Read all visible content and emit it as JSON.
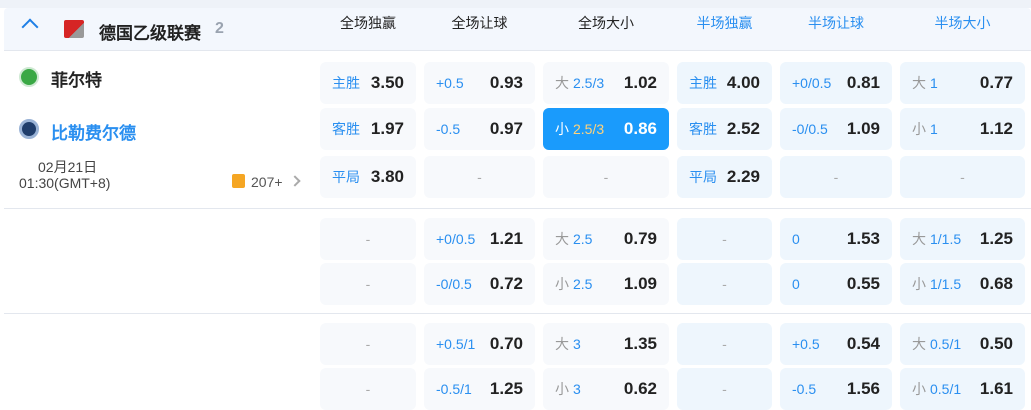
{
  "league": {
    "name": "德国乙级联赛",
    "count": "2"
  },
  "columns": [
    "全场独赢",
    "全场让球",
    "全场大小",
    "半场独赢",
    "半场让球",
    "半场大小"
  ],
  "match": {
    "home": "菲尔特",
    "away": "比勒费尔德",
    "date": "02月21日",
    "time": "01:30(GMT+8)",
    "markets_count": "207+"
  },
  "colors": {
    "accent": "#2a8ff0",
    "selected": "#1a9bfc",
    "home_badge": "#3aa845"
  },
  "rows": [
    [
      {
        "l": "主胜",
        "o": "3.50"
      },
      {
        "l": "+0.5",
        "o": "0.93"
      },
      {
        "p": "大",
        "l": "2.5/3",
        "o": "1.02"
      },
      {
        "l": "主胜",
        "o": "4.00"
      },
      {
        "l": "+0/0.5",
        "o": "0.81"
      },
      {
        "p": "大",
        "l": "1",
        "o": "0.77"
      }
    ],
    [
      {
        "l": "客胜",
        "o": "1.97"
      },
      {
        "l": "-0.5",
        "o": "0.97"
      },
      {
        "p": "小",
        "l": "2.5/3",
        "o": "0.86",
        "selected": true
      },
      {
        "l": "客胜",
        "o": "2.52"
      },
      {
        "l": "-0/0.5",
        "o": "1.09"
      },
      {
        "p": "小",
        "l": "1",
        "o": "1.12"
      }
    ],
    [
      {
        "l": "平局",
        "o": "3.80"
      },
      {
        "d": "-"
      },
      {
        "d": "-"
      },
      {
        "l": "平局",
        "o": "2.29"
      },
      {
        "d": "-"
      },
      {
        "d": "-"
      }
    ],
    [
      {
        "d": "-"
      },
      {
        "l": "+0/0.5",
        "o": "1.21"
      },
      {
        "p": "大",
        "l": "2.5",
        "o": "0.79"
      },
      {
        "d": "-"
      },
      {
        "l": "0",
        "o": "1.53"
      },
      {
        "p": "大",
        "l": "1/1.5",
        "o": "1.25"
      }
    ],
    [
      {
        "d": "-"
      },
      {
        "l": "-0/0.5",
        "o": "0.72"
      },
      {
        "p": "小",
        "l": "2.5",
        "o": "1.09"
      },
      {
        "d": "-"
      },
      {
        "l": "0",
        "o": "0.55"
      },
      {
        "p": "小",
        "l": "1/1.5",
        "o": "0.68"
      }
    ],
    [
      {
        "d": "-"
      },
      {
        "l": "+0.5/1",
        "o": "0.70"
      },
      {
        "p": "大",
        "l": "3",
        "o": "1.35"
      },
      {
        "d": "-"
      },
      {
        "l": "+0.5",
        "o": "0.54"
      },
      {
        "p": "大",
        "l": "0.5/1",
        "o": "0.50"
      }
    ],
    [
      {
        "d": "-"
      },
      {
        "l": "-0.5/1",
        "o": "1.25"
      },
      {
        "p": "小",
        "l": "3",
        "o": "0.62"
      },
      {
        "d": "-"
      },
      {
        "l": "-0.5",
        "o": "1.56"
      },
      {
        "p": "小",
        "l": "0.5/1",
        "o": "1.61"
      }
    ]
  ]
}
